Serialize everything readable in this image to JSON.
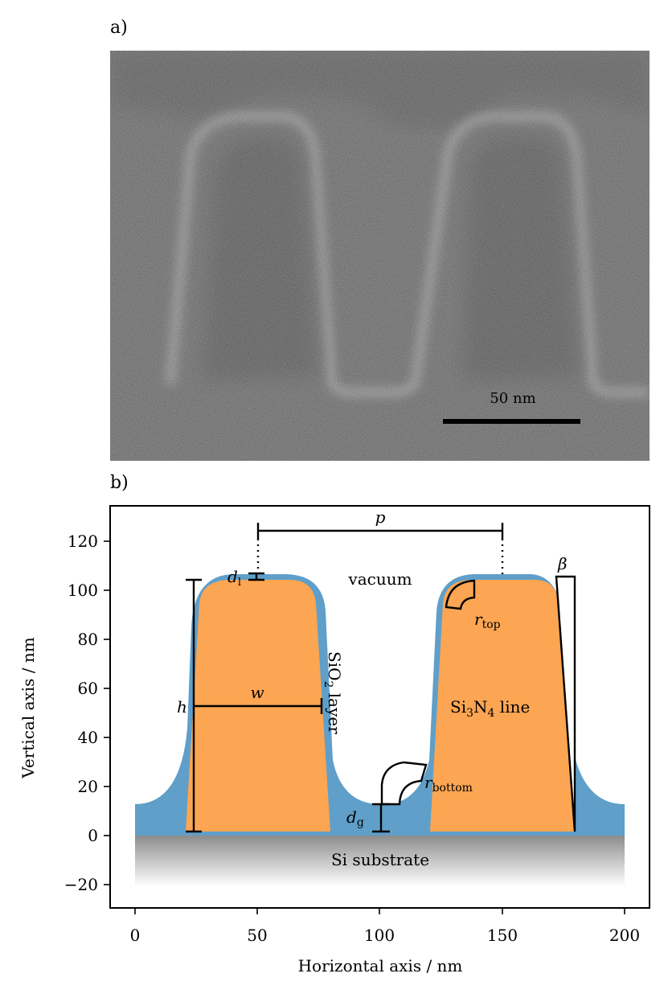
{
  "panels": {
    "a": "a)",
    "b": "b)"
  },
  "sem_image": {
    "scale_bar_label": "50 nm"
  },
  "diagram": {
    "xlabel": "Horizontal axis / nm",
    "ylabel": "Vertical axis / nm",
    "x_ticks": [
      "0",
      "50",
      "100",
      "150",
      "200"
    ],
    "y_ticks": [
      "120",
      "100",
      "80",
      "60",
      "40",
      "20",
      "0",
      "−20"
    ],
    "x_range": [
      -10,
      210
    ],
    "y_range": [
      -30,
      137
    ],
    "labels": {
      "p": "p",
      "beta": "β",
      "d_l": "d",
      "d_l_sub": "l",
      "vacuum": "vacuum",
      "r_top": "r",
      "r_top_sub": "top",
      "h": "h",
      "w": "w",
      "sio2_a": "SiO",
      "sio2_sub": "2",
      "sio2_b": " layer",
      "si3n4_a": "Si",
      "si3n4_sub1": "3",
      "si3n4_b": "N",
      "si3n4_sub2": "4",
      "si3n4_c": " line",
      "r_bottom": "r",
      "r_bottom_sub": "bottom",
      "d_g": "d",
      "d_g_sub": "g",
      "substrate": "Si substrate"
    },
    "colors": {
      "oxide": "#5f9fc9",
      "nitride": "#fca552",
      "frame": "#000000"
    }
  }
}
